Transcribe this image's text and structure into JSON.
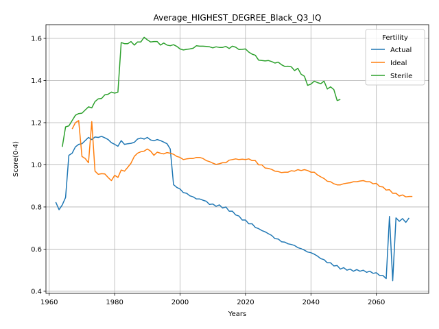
{
  "chart_data": {
    "type": "line",
    "title": "Average_HIGHEST_DEGREE_Black_Q3_IQ",
    "xlabel": "Years",
    "ylabel": "Score(0-4)",
    "xlim": [
      1959,
      2076
    ],
    "ylim": [
      0.39,
      1.665
    ],
    "xticks": [
      1960,
      1980,
      2000,
      2020,
      2040,
      2060
    ],
    "yticks": [
      0.4,
      0.6,
      0.8,
      1.0,
      1.2,
      1.4,
      1.6
    ],
    "xtick_labels": [
      "1960",
      "1980",
      "2000",
      "2020",
      "2040",
      "2060"
    ],
    "ytick_labels": [
      "0.4",
      "0.6",
      "0.8",
      "1.0",
      "1.2",
      "1.4",
      "1.6"
    ],
    "grid": true,
    "legend_title": "Fertility",
    "legend_position": "top-right",
    "series": [
      {
        "name": "Actual",
        "color": "#1f77b4",
        "points": [
          [
            1962,
            0.823
          ],
          [
            1963,
            0.787
          ],
          [
            1964,
            0.81
          ],
          [
            1965,
            0.845
          ],
          [
            1966,
            1.045
          ],
          [
            1967,
            1.055
          ],
          [
            1968,
            1.085
          ],
          [
            1969,
            1.097
          ],
          [
            1970,
            1.1
          ],
          [
            1971,
            1.115
          ],
          [
            1972,
            1.13
          ],
          [
            1973,
            1.12
          ],
          [
            1974,
            1.132
          ],
          [
            1975,
            1.13
          ],
          [
            1976,
            1.135
          ],
          [
            1977,
            1.128
          ],
          [
            1978,
            1.12
          ],
          [
            1979,
            1.105
          ],
          [
            1980,
            1.097
          ],
          [
            1981,
            1.088
          ],
          [
            1982,
            1.115
          ],
          [
            1983,
            1.097
          ],
          [
            1984,
            1.1
          ],
          [
            1985,
            1.102
          ],
          [
            1986,
            1.107
          ],
          [
            1987,
            1.122
          ],
          [
            1988,
            1.127
          ],
          [
            1989,
            1.122
          ],
          [
            1990,
            1.13
          ],
          [
            1991,
            1.118
          ],
          [
            1992,
            1.114
          ],
          [
            1993,
            1.12
          ],
          [
            1994,
            1.115
          ],
          [
            1995,
            1.108
          ],
          [
            1996,
            1.1
          ],
          [
            1997,
            1.075
          ],
          [
            1998,
            0.906
          ],
          [
            1999,
            0.893
          ],
          [
            2000,
            0.885
          ],
          [
            2001,
            0.868
          ],
          [
            2002,
            0.865
          ],
          [
            2003,
            0.853
          ],
          [
            2004,
            0.848
          ],
          [
            2005,
            0.838
          ],
          [
            2006,
            0.838
          ],
          [
            2007,
            0.832
          ],
          [
            2008,
            0.827
          ],
          [
            2009,
            0.812
          ],
          [
            2010,
            0.814
          ],
          [
            2011,
            0.803
          ],
          [
            2012,
            0.81
          ],
          [
            2013,
            0.795
          ],
          [
            2014,
            0.8
          ],
          [
            2015,
            0.78
          ],
          [
            2016,
            0.78
          ],
          [
            2017,
            0.762
          ],
          [
            2018,
            0.757
          ],
          [
            2019,
            0.738
          ],
          [
            2020,
            0.738
          ],
          [
            2021,
            0.72
          ],
          [
            2022,
            0.72
          ],
          [
            2023,
            0.703
          ],
          [
            2024,
            0.697
          ],
          [
            2025,
            0.688
          ],
          [
            2026,
            0.682
          ],
          [
            2027,
            0.673
          ],
          [
            2028,
            0.665
          ],
          [
            2029,
            0.65
          ],
          [
            2030,
            0.648
          ],
          [
            2031,
            0.635
          ],
          [
            2032,
            0.633
          ],
          [
            2033,
            0.625
          ],
          [
            2034,
            0.622
          ],
          [
            2035,
            0.617
          ],
          [
            2036,
            0.607
          ],
          [
            2037,
            0.602
          ],
          [
            2038,
            0.595
          ],
          [
            2039,
            0.586
          ],
          [
            2040,
            0.583
          ],
          [
            2041,
            0.576
          ],
          [
            2042,
            0.567
          ],
          [
            2043,
            0.555
          ],
          [
            2044,
            0.55
          ],
          [
            2045,
            0.535
          ],
          [
            2046,
            0.535
          ],
          [
            2047,
            0.52
          ],
          [
            2048,
            0.522
          ],
          [
            2049,
            0.505
          ],
          [
            2050,
            0.512
          ],
          [
            2051,
            0.5
          ],
          [
            2052,
            0.505
          ],
          [
            2053,
            0.495
          ],
          [
            2054,
            0.503
          ],
          [
            2055,
            0.495
          ],
          [
            2056,
            0.5
          ],
          [
            2057,
            0.49
          ],
          [
            2058,
            0.495
          ],
          [
            2059,
            0.485
          ],
          [
            2060,
            0.488
          ],
          [
            2061,
            0.475
          ],
          [
            2062,
            0.475
          ],
          [
            2063,
            0.46
          ],
          [
            2064,
            0.755
          ],
          [
            2065,
            0.45
          ],
          [
            2066,
            0.748
          ],
          [
            2067,
            0.732
          ],
          [
            2068,
            0.745
          ],
          [
            2069,
            0.727
          ],
          [
            2070,
            0.748
          ]
        ]
      },
      {
        "name": "Ideal",
        "color": "#ff7f0e",
        "points": [
          [
            1967,
            1.17
          ],
          [
            1968,
            1.2
          ],
          [
            1969,
            1.21
          ],
          [
            1970,
            1.04
          ],
          [
            1971,
            1.03
          ],
          [
            1972,
            1.01
          ],
          [
            1973,
            1.205
          ],
          [
            1974,
            0.97
          ],
          [
            1975,
            0.955
          ],
          [
            1976,
            0.958
          ],
          [
            1977,
            0.957
          ],
          [
            1978,
            0.94
          ],
          [
            1979,
            0.925
          ],
          [
            1980,
            0.95
          ],
          [
            1981,
            0.94
          ],
          [
            1982,
            0.975
          ],
          [
            1983,
            0.97
          ],
          [
            1984,
            0.988
          ],
          [
            1985,
            1.008
          ],
          [
            1986,
            1.04
          ],
          [
            1987,
            1.055
          ],
          [
            1988,
            1.062
          ],
          [
            1989,
            1.065
          ],
          [
            1990,
            1.075
          ],
          [
            1991,
            1.065
          ],
          [
            1992,
            1.045
          ],
          [
            1993,
            1.06
          ],
          [
            1994,
            1.055
          ],
          [
            1995,
            1.052
          ],
          [
            1996,
            1.058
          ],
          [
            1997,
            1.055
          ],
          [
            1998,
            1.05
          ],
          [
            1999,
            1.04
          ],
          [
            2000,
            1.035
          ],
          [
            2001,
            1.025
          ],
          [
            2002,
            1.028
          ],
          [
            2003,
            1.03
          ],
          [
            2004,
            1.03
          ],
          [
            2005,
            1.035
          ],
          [
            2006,
            1.035
          ],
          [
            2007,
            1.03
          ],
          [
            2008,
            1.02
          ],
          [
            2009,
            1.015
          ],
          [
            2010,
            1.008
          ],
          [
            2011,
            1.002
          ],
          [
            2012,
            1.005
          ],
          [
            2013,
            1.01
          ],
          [
            2014,
            1.01
          ],
          [
            2015,
            1.022
          ],
          [
            2016,
            1.025
          ],
          [
            2017,
            1.028
          ],
          [
            2018,
            1.025
          ],
          [
            2019,
            1.027
          ],
          [
            2020,
            1.025
          ],
          [
            2021,
            1.028
          ],
          [
            2022,
            1.02
          ],
          [
            2023,
            1.02
          ],
          [
            2024,
            1.0
          ],
          [
            2025,
            1.0
          ],
          [
            2026,
            0.985
          ],
          [
            2027,
            0.983
          ],
          [
            2028,
            0.978
          ],
          [
            2029,
            0.97
          ],
          [
            2030,
            0.968
          ],
          [
            2031,
            0.963
          ],
          [
            2032,
            0.965
          ],
          [
            2033,
            0.965
          ],
          [
            2034,
            0.972
          ],
          [
            2035,
            0.97
          ],
          [
            2036,
            0.977
          ],
          [
            2037,
            0.973
          ],
          [
            2038,
            0.977
          ],
          [
            2039,
            0.973
          ],
          [
            2040,
            0.965
          ],
          [
            2041,
            0.965
          ],
          [
            2042,
            0.952
          ],
          [
            2043,
            0.943
          ],
          [
            2044,
            0.935
          ],
          [
            2045,
            0.922
          ],
          [
            2046,
            0.92
          ],
          [
            2047,
            0.91
          ],
          [
            2048,
            0.905
          ],
          [
            2049,
            0.905
          ],
          [
            2050,
            0.91
          ],
          [
            2051,
            0.913
          ],
          [
            2052,
            0.915
          ],
          [
            2053,
            0.92
          ],
          [
            2054,
            0.92
          ],
          [
            2055,
            0.923
          ],
          [
            2056,
            0.925
          ],
          [
            2057,
            0.92
          ],
          [
            2058,
            0.92
          ],
          [
            2059,
            0.91
          ],
          [
            2060,
            0.912
          ],
          [
            2061,
            0.897
          ],
          [
            2062,
            0.895
          ],
          [
            2063,
            0.88
          ],
          [
            2064,
            0.882
          ],
          [
            2065,
            0.865
          ],
          [
            2066,
            0.865
          ],
          [
            2067,
            0.852
          ],
          [
            2068,
            0.857
          ],
          [
            2069,
            0.848
          ],
          [
            2070,
            0.85
          ],
          [
            2071,
            0.85
          ]
        ]
      },
      {
        "name": "Sterile",
        "color": "#2ca02c",
        "points": [
          [
            1964,
            1.085
          ],
          [
            1965,
            1.18
          ],
          [
            1966,
            1.185
          ],
          [
            1967,
            1.21
          ],
          [
            1968,
            1.235
          ],
          [
            1969,
            1.243
          ],
          [
            1970,
            1.245
          ],
          [
            1971,
            1.26
          ],
          [
            1972,
            1.275
          ],
          [
            1973,
            1.27
          ],
          [
            1974,
            1.3
          ],
          [
            1975,
            1.313
          ],
          [
            1976,
            1.315
          ],
          [
            1977,
            1.332
          ],
          [
            1978,
            1.335
          ],
          [
            1979,
            1.345
          ],
          [
            1980,
            1.34
          ],
          [
            1981,
            1.345
          ],
          [
            1982,
            1.58
          ],
          [
            1983,
            1.575
          ],
          [
            1984,
            1.575
          ],
          [
            1985,
            1.585
          ],
          [
            1986,
            1.568
          ],
          [
            1987,
            1.583
          ],
          [
            1988,
            1.583
          ],
          [
            1989,
            1.605
          ],
          [
            1990,
            1.593
          ],
          [
            1991,
            1.583
          ],
          [
            1992,
            1.585
          ],
          [
            1993,
            1.585
          ],
          [
            1994,
            1.568
          ],
          [
            1995,
            1.578
          ],
          [
            1996,
            1.568
          ],
          [
            1997,
            1.565
          ],
          [
            1998,
            1.57
          ],
          [
            1999,
            1.562
          ],
          [
            2000,
            1.55
          ],
          [
            2001,
            1.545
          ],
          [
            2002,
            1.548
          ],
          [
            2003,
            1.55
          ],
          [
            2004,
            1.553
          ],
          [
            2005,
            1.565
          ],
          [
            2006,
            1.563
          ],
          [
            2007,
            1.563
          ],
          [
            2008,
            1.562
          ],
          [
            2009,
            1.56
          ],
          [
            2010,
            1.555
          ],
          [
            2011,
            1.56
          ],
          [
            2012,
            1.557
          ],
          [
            2013,
            1.557
          ],
          [
            2014,
            1.562
          ],
          [
            2015,
            1.552
          ],
          [
            2016,
            1.563
          ],
          [
            2017,
            1.558
          ],
          [
            2018,
            1.547
          ],
          [
            2019,
            1.548
          ],
          [
            2020,
            1.55
          ],
          [
            2021,
            1.535
          ],
          [
            2022,
            1.525
          ],
          [
            2023,
            1.52
          ],
          [
            2024,
            1.497
          ],
          [
            2025,
            1.495
          ],
          [
            2026,
            1.493
          ],
          [
            2027,
            1.495
          ],
          [
            2028,
            1.49
          ],
          [
            2029,
            1.483
          ],
          [
            2030,
            1.487
          ],
          [
            2031,
            1.475
          ],
          [
            2032,
            1.467
          ],
          [
            2033,
            1.468
          ],
          [
            2034,
            1.465
          ],
          [
            2035,
            1.447
          ],
          [
            2036,
            1.458
          ],
          [
            2037,
            1.43
          ],
          [
            2038,
            1.42
          ],
          [
            2039,
            1.377
          ],
          [
            2040,
            1.383
          ],
          [
            2041,
            1.397
          ],
          [
            2042,
            1.39
          ],
          [
            2043,
            1.385
          ],
          [
            2044,
            1.397
          ],
          [
            2045,
            1.36
          ],
          [
            2046,
            1.37
          ],
          [
            2047,
            1.357
          ],
          [
            2048,
            1.305
          ],
          [
            2049,
            1.31
          ]
        ]
      }
    ]
  }
}
